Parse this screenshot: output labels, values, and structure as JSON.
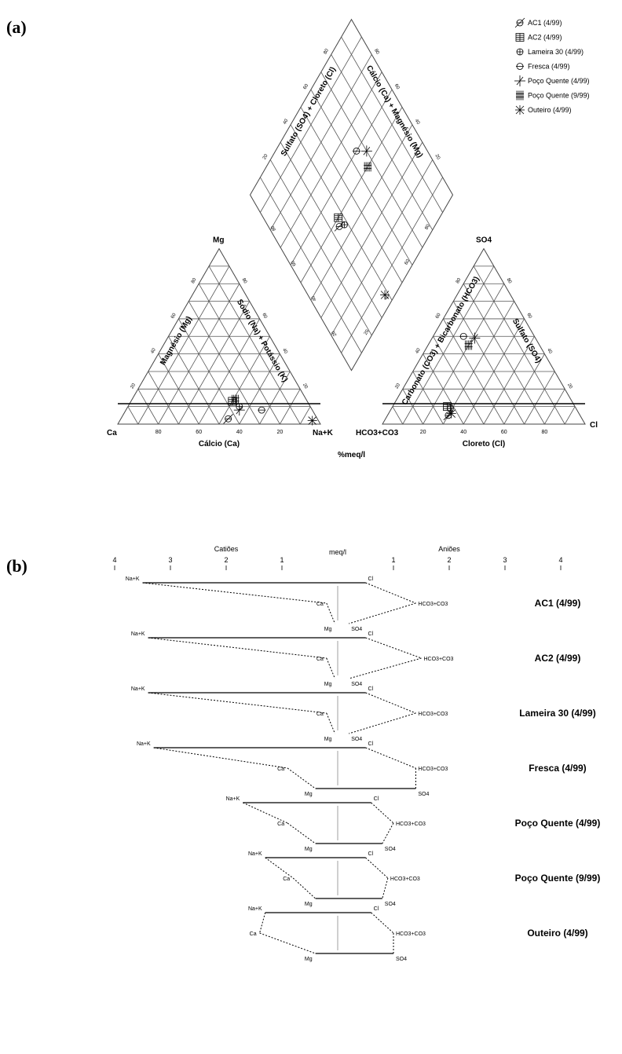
{
  "panel_a_label": "(a)",
  "panel_b_label": "(b)",
  "chart_data": [
    {
      "type": "scatter",
      "subtype": "piper-diagram",
      "cation_triangle": {
        "apex_labels": {
          "left": "Ca",
          "top": "Mg",
          "right": "Na+K"
        },
        "left_axis_label": "Magnésio (Mg)",
        "right_axis_label": "Sódio (Na) + Potássio (K)",
        "bottom_axis_label": "Cálcio (Ca)",
        "bottom_tick_labels": [
          "80",
          "60",
          "40",
          "20"
        ],
        "side_tick_labels": [
          "20",
          "40",
          "60",
          "80"
        ]
      },
      "anion_triangle": {
        "apex_labels": {
          "left": "HCO3+CO3",
          "top": "SO4",
          "right": "Cl"
        },
        "left_axis_label": "Carbonato (CO3) + Bicarbonato (HCO3)",
        "right_axis_label": "Sulfato (SO4)",
        "bottom_axis_label": "Cloreto (Cl)",
        "bottom_tick_labels": [
          "20",
          "40",
          "60",
          "80"
        ],
        "side_tick_labels": [
          "20",
          "40",
          "60",
          "80"
        ]
      },
      "diamond": {
        "upper_left_label": "Sulfato (SO4) + Cloreto (Cl)",
        "upper_right_label": "Cálcio (Ca) + Magnésio (Mg)",
        "tick_labels": [
          "20",
          "40",
          "60",
          "80"
        ]
      },
      "units_label": "%meq/l",
      "legend_position": "top-right",
      "legend": [
        "AC1 (4/99)",
        "AC2 (4/99)",
        "Lameira 30 (4/99)",
        "Fresca (4/99)",
        "Poço Quente (4/99)",
        "Poço Quente (9/99)",
        "Outeiro (4/99)"
      ],
      "samples": [
        {
          "name": "AC1 (4/99)",
          "cation": {
            "Ca": 44,
            "Mg": 3,
            "NaK": 53
          },
          "anion": {
            "HCO3": 65,
            "SO4": 5,
            "Cl": 30
          },
          "diamond": {
            "SO4Cl": 35,
            "CaMg": 47
          }
        },
        {
          "name": "AC2 (4/99)",
          "cation": {
            "Ca": 37,
            "Mg": 13,
            "NaK": 50
          },
          "anion": {
            "HCO3": 63,
            "SO4": 10,
            "Cl": 27
          },
          "diamond": {
            "SO4Cl": 37,
            "CaMg": 50
          }
        },
        {
          "name": "Lameira 30 (4/99)",
          "cation": {
            "Ca": 35,
            "Mg": 10,
            "NaK": 55
          },
          "anion": {
            "HCO3": 62,
            "SO4": 9,
            "Cl": 29
          },
          "diamond": {
            "SO4Cl": 38,
            "CaMg": 45
          }
        },
        {
          "name": "Fresca (4/99)",
          "cation": {
            "Ca": 25,
            "Mg": 8,
            "NaK": 67
          },
          "anion": {
            "HCO3": 35,
            "SO4": 50,
            "Cl": 15
          },
          "diamond": {
            "SO4Cl": 65,
            "CaMg": 60
          }
        },
        {
          "name": "Poço Quente (4/99)",
          "cation": {
            "Ca": 36,
            "Mg": 8,
            "NaK": 56
          },
          "anion": {
            "HCO3": 30,
            "SO4": 49,
            "Cl": 21
          },
          "diamond": {
            "SO4Cl": 70,
            "CaMg": 55
          }
        },
        {
          "name": "Poço Quente (9/99)",
          "cation": {
            "Ca": 35,
            "Mg": 14,
            "NaK": 51
          },
          "anion": {
            "HCO3": 35,
            "SO4": 45,
            "Cl": 20
          },
          "diamond": {
            "SO4Cl": 66,
            "CaMg": 50
          }
        },
        {
          "name": "Outeiro (4/99)",
          "cation": {
            "Ca": 3,
            "Mg": 2,
            "NaK": 95
          },
          "anion": {
            "HCO3": 63,
            "SO4": 6,
            "Cl": 31
          },
          "diamond": {
            "SO4Cl": 38,
            "CaMg": 5
          }
        }
      ]
    },
    {
      "type": "line",
      "subtype": "stiff-diagram",
      "center_label": "meq/l",
      "left_header": "Catiões",
      "right_header": "Aniões",
      "axis_ticks": [
        -4,
        -3,
        -2,
        -1,
        1,
        2,
        3,
        4
      ],
      "axis_tick_labels": [
        "4",
        "3",
        "2",
        "1",
        "1",
        "2",
        "3",
        "4"
      ],
      "cation_labels": [
        "Na+K",
        "Ca",
        "Mg"
      ],
      "anion_labels": [
        "Cl",
        "HCO3+CO3",
        "SO4"
      ],
      "series": [
        {
          "name": "AC1 (4/99)",
          "NaK": 3.5,
          "Ca": 0.2,
          "Mg": 0.05,
          "Cl": 0.5,
          "HCO3": 1.4,
          "SO4": 0.2,
          "cation_labels": [
            "Na+K",
            "Ca",
            "Mg"
          ],
          "anion_labels": [
            "Cl",
            "HCO3+CO3",
            "SO4"
          ]
        },
        {
          "name": "AC2 (4/99)",
          "NaK": 3.4,
          "Ca": 0.2,
          "Mg": 0.05,
          "Cl": 0.5,
          "HCO3": 1.5,
          "SO4": 0.2,
          "cation_labels": [
            "Na+K",
            "Ca",
            "Mg"
          ],
          "anion_labels": [
            "Cl",
            "HCO3+CO3",
            "SO4"
          ]
        },
        {
          "name": "Lameira 30 (4/99)",
          "NaK": 3.4,
          "Ca": 0.2,
          "Mg": 0.05,
          "Cl": 0.5,
          "HCO3": 1.4,
          "SO4": 0.2,
          "cation_labels": [
            "Na+K",
            "Ca",
            "Mg"
          ],
          "anion_labels": [
            "Cl",
            "HCO3+CO3",
            "SO4"
          ]
        },
        {
          "name": "Fresca (4/99)",
          "NaK": 3.3,
          "Ca": 0.9,
          "Mg": 0.4,
          "Cl": 0.5,
          "HCO3": 1.4,
          "SO4": 1.4,
          "cation_labels": [
            "Na+K",
            "Ca",
            "Mg"
          ],
          "anion_labels": [
            "Cl",
            "HCO3+CO3",
            "SO4"
          ]
        },
        {
          "name": "Poço Quente (4/99)",
          "NaK": 1.7,
          "Ca": 0.9,
          "Mg": 0.4,
          "Cl": 0.6,
          "HCO3": 1.0,
          "SO4": 0.8,
          "cation_labels": [
            "Na+K",
            "Ca",
            "Mg"
          ],
          "anion_labels": [
            "Cl",
            "HCO3+CO3",
            "SO4"
          ]
        },
        {
          "name": "Poço Quente (9/99)",
          "NaK": 1.3,
          "Ca": 0.8,
          "Mg": 0.4,
          "Cl": 0.5,
          "HCO3": 0.9,
          "SO4": 0.8,
          "cation_labels": [
            "Na+K",
            "Ca",
            "Mg"
          ],
          "anion_labels": [
            "Cl",
            "HCO3+CO3",
            "SO4"
          ]
        },
        {
          "name": "Outeiro (4/99)",
          "NaK": 1.3,
          "Ca": 1.4,
          "Mg": 0.4,
          "Cl": 0.6,
          "HCO3": 1.0,
          "SO4": 1.0,
          "cation_labels": [
            "Na+K",
            "Ca",
            "Mg"
          ],
          "anion_labels": [
            "Cl",
            "HCO3+CO3",
            "SO4"
          ]
        }
      ]
    }
  ]
}
